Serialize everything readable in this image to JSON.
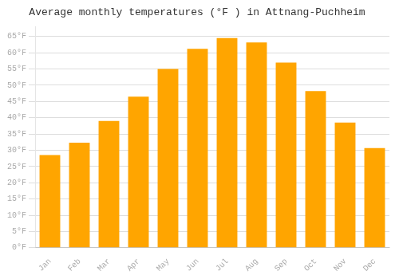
{
  "chart_data": {
    "type": "bar",
    "title": "Average monthly temperatures (°F ) in Attnang-Puchheim",
    "categories": [
      "Jan",
      "Feb",
      "Mar",
      "Apr",
      "May",
      "Jun",
      "Jul",
      "Aug",
      "Sep",
      "Oct",
      "Nov",
      "Dec"
    ],
    "values": [
      28.5,
      32.3,
      39.0,
      46.5,
      55.0,
      61.2,
      64.5,
      63.2,
      57.0,
      48.2,
      38.5,
      30.7
    ],
    "color": "#FFA500",
    "ylim": [
      0,
      68
    ],
    "yticks": [
      {
        "value": 0,
        "label": "0°F"
      },
      {
        "value": 5,
        "label": "5°F"
      },
      {
        "value": 10,
        "label": "10°F"
      },
      {
        "value": 15,
        "label": "15°F"
      },
      {
        "value": 20,
        "label": "20°F"
      },
      {
        "value": 25,
        "label": "25°F"
      },
      {
        "value": 30,
        "label": "30°F"
      },
      {
        "value": 35,
        "label": "35°F"
      },
      {
        "value": 40,
        "label": "40°F"
      },
      {
        "value": 45,
        "label": "45°F"
      },
      {
        "value": 50,
        "label": "50°F"
      },
      {
        "value": 55,
        "label": "55°F"
      },
      {
        "value": 60,
        "label": "60°F"
      },
      {
        "value": 65,
        "label": "65°F"
      }
    ],
    "grid": true
  }
}
